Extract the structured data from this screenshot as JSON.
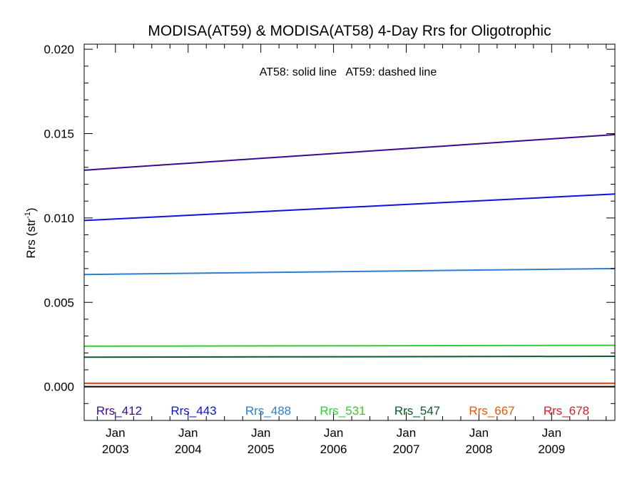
{
  "chart_data": {
    "type": "line",
    "title": "MODISA(AT59) & MODISA(AT58) 4-Day Rrs for Oligotrophic",
    "annotation": "AT58: solid line   AT59: dashed line",
    "ylabel_main": "Rrs (str",
    "ylabel_sup": "-1",
    "ylabel_tail": ")",
    "ylim": [
      -0.002,
      0.0203
    ],
    "xlim": [
      2002.57,
      2009.87
    ],
    "yticks": [
      0.0,
      0.005,
      0.01,
      0.015,
      0.02
    ],
    "ytick_labels": [
      "0.000",
      "0.005",
      "0.010",
      "0.015",
      "0.020"
    ],
    "xticks": [
      {
        "x": 2003.0,
        "month": "Jan",
        "year": "2003"
      },
      {
        "x": 2004.0,
        "month": "Jan",
        "year": "2004"
      },
      {
        "x": 2005.0,
        "month": "Jan",
        "year": "2005"
      },
      {
        "x": 2006.0,
        "month": "Jan",
        "year": "2006"
      },
      {
        "x": 2007.0,
        "month": "Jan",
        "year": "2007"
      },
      {
        "x": 2008.0,
        "month": "Jan",
        "year": "2008"
      },
      {
        "x": 2009.0,
        "month": "Jan",
        "year": "2009"
      }
    ],
    "zero_line": true,
    "series": [
      {
        "name": "Rrs_412",
        "color": "#3b0a8c",
        "x": [
          2002.57,
          2009.87
        ],
        "y": [
          0.01283,
          0.01494
        ]
      },
      {
        "name": "Rrs_443",
        "color": "#1010e0",
        "x": [
          2002.57,
          2009.87
        ],
        "y": [
          0.00985,
          0.01142
        ]
      },
      {
        "name": "Rrs_488",
        "color": "#2b7fd0",
        "x": [
          2002.57,
          2009.87
        ],
        "y": [
          0.00665,
          0.007
        ]
      },
      {
        "name": "Rrs_531",
        "color": "#33cc33",
        "x": [
          2002.57,
          2009.87
        ],
        "y": [
          0.0024,
          0.00245
        ]
      },
      {
        "name": "Rrs_547",
        "color": "#0a5a2a",
        "x": [
          2002.57,
          2009.87
        ],
        "y": [
          0.00175,
          0.0018
        ]
      },
      {
        "name": "Rrs_667",
        "color": "#e05a10",
        "x": [
          2002.57,
          2009.87
        ],
        "y": [
          0.0002,
          0.0002
        ]
      },
      {
        "name": "Rrs_678",
        "color": "#d81e2a",
        "x": [
          2002.57,
          2009.87
        ],
        "y": [
          0.0002,
          0.0002
        ]
      }
    ]
  }
}
